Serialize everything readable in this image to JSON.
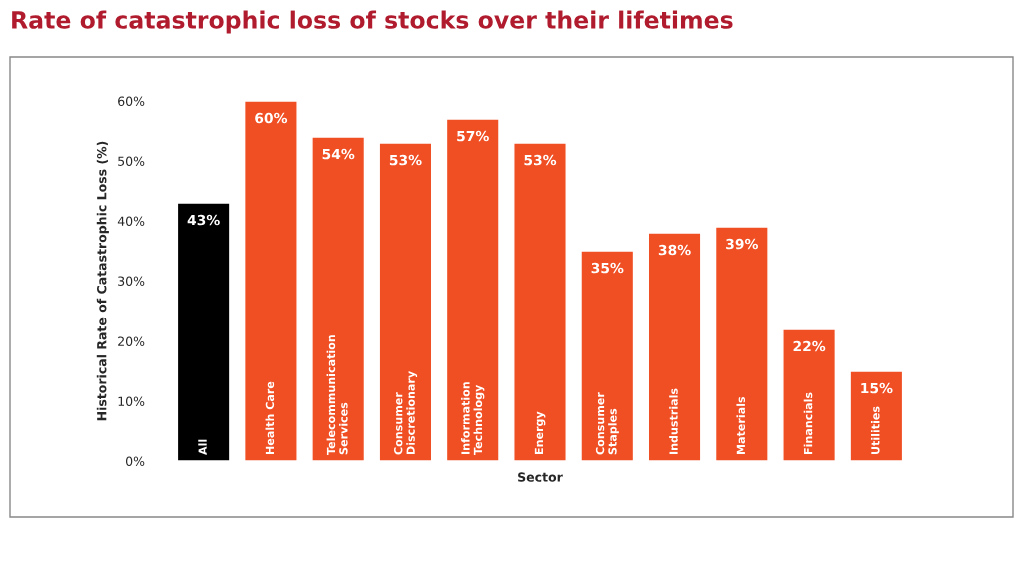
{
  "chart_data": {
    "type": "bar",
    "title": "Rate of catastrophic loss of stocks over their lifetimes",
    "xlabel": "Sector",
    "ylabel": "Historical Rate of Catastrophic Loss (%)",
    "categories": [
      "All",
      "Health Care",
      "Telecommunication\nServices",
      "Consumer\nDiscretionary",
      "Information\nTechnology",
      "Energy",
      "Consumer\nStaples",
      "Industrials",
      "Materials",
      "Financials",
      "Utilities"
    ],
    "values": [
      43,
      60,
      54,
      53,
      57,
      53,
      35,
      38,
      39,
      22,
      15
    ],
    "colors": [
      "#000000",
      "#f04e23",
      "#f04e23",
      "#f04e23",
      "#f04e23",
      "#f04e23",
      "#f04e23",
      "#f04e23",
      "#f04e23",
      "#f04e23",
      "#f04e23"
    ],
    "value_labels": [
      "43%",
      "60%",
      "54%",
      "53%",
      "57%",
      "53%",
      "35%",
      "38%",
      "39%",
      "22%",
      "15%"
    ],
    "ylim": [
      0,
      60
    ],
    "yticks": [
      {
        "value": 0,
        "label": "0%"
      },
      {
        "value": 10,
        "label": "10%"
      },
      {
        "value": 20,
        "label": "20%"
      },
      {
        "value": 30,
        "label": "30%"
      },
      {
        "value": 40,
        "label": "40%"
      },
      {
        "value": 50,
        "label": "50%"
      },
      {
        "value": 60,
        "label": "60%"
      }
    ],
    "grid": false,
    "legend": false
  }
}
